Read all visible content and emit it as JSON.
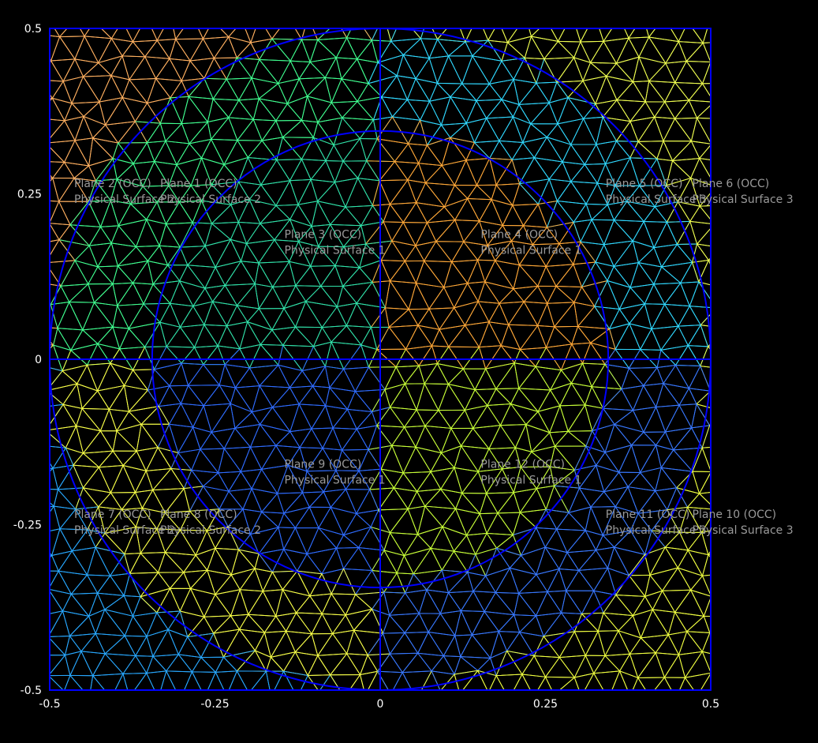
{
  "plot": {
    "x_range": [
      -0.5,
      0.5
    ],
    "y_range": [
      -0.5,
      0.5
    ],
    "x_ticks": [
      {
        "value": -0.5,
        "label": "-0.5"
      },
      {
        "value": -0.25,
        "label": "-0.25"
      },
      {
        "value": 0,
        "label": "0"
      },
      {
        "value": 0.25,
        "label": "0.25"
      },
      {
        "value": 0.5,
        "label": "0.5"
      }
    ],
    "y_ticks": [
      {
        "value": 0.5,
        "label": "0.5"
      },
      {
        "value": 0.25,
        "label": "0.25"
      },
      {
        "value": 0,
        "label": "0"
      },
      {
        "value": -0.25,
        "label": "-0.25"
      },
      {
        "value": -0.5,
        "label": "-0.5"
      }
    ],
    "geometry": {
      "outer_circle_radius": 0.5,
      "inner_circle_radius": 0.345,
      "divider_lines": [
        "x=0",
        "y=0"
      ],
      "boundary_color": "#0000ff"
    }
  },
  "regions": [
    {
      "id": "plane-2",
      "quadrant": "upper-left",
      "zone": "corner",
      "mesh_color": "#ffb060",
      "plane": "Plane 2 (OCC)",
      "surface": "Physical Surface 2",
      "label_at": [
        -0.463,
        0.26
      ]
    },
    {
      "id": "plane-1",
      "quadrant": "upper-left",
      "zone": "ring",
      "mesh_color": "#40ff90",
      "plane": "Plane 1 (OCC)",
      "surface": "Physical Surface 2",
      "label_at": [
        -0.333,
        0.26
      ]
    },
    {
      "id": "plane-3",
      "quadrant": "upper-left",
      "zone": "disk",
      "mesh_color": "#30e0a8",
      "plane": "Plane 3 (OCC)",
      "surface": "Physical Surface 1",
      "label_at": [
        -0.145,
        0.183
      ]
    },
    {
      "id": "plane-4",
      "quadrant": "upper-right",
      "zone": "disk",
      "mesh_color": "#ffa838",
      "plane": "Plane 4 (OCC)",
      "surface": "Physical Surface 1",
      "label_at": [
        0.152,
        0.183
      ]
    },
    {
      "id": "plane-5",
      "quadrant": "upper-right",
      "zone": "ring",
      "mesh_color": "#30d8ff",
      "plane": "Plane 5 (OCC)",
      "surface": "Physical Surface 3",
      "label_at": [
        0.341,
        0.26
      ]
    },
    {
      "id": "plane-6",
      "quadrant": "upper-right",
      "zone": "corner",
      "mesh_color": "#f0ff50",
      "plane": "Plane 6 (OCC)",
      "surface": "Physical Surface 3",
      "label_at": [
        0.472,
        0.26
      ]
    },
    {
      "id": "plane-7",
      "quadrant": "lower-left",
      "zone": "corner",
      "mesh_color": "#28a8ff",
      "plane": "Plane 7 (OCC)",
      "surface": "Physical Surface 2",
      "label_at": [
        -0.463,
        -0.24
      ]
    },
    {
      "id": "plane-8",
      "quadrant": "lower-left",
      "zone": "ring",
      "mesh_color": "#f8ff48",
      "plane": "Plane 8 (OCC)",
      "surface": "Physical Surface 2",
      "label_at": [
        -0.333,
        -0.24
      ]
    },
    {
      "id": "plane-9",
      "quadrant": "lower-left",
      "zone": "disk",
      "mesh_color": "#2f6cff",
      "plane": "Plane 9 (OCC)",
      "surface": "Physical Surface 1",
      "label_at": [
        -0.145,
        -0.164
      ]
    },
    {
      "id": "plane-12",
      "quadrant": "lower-right",
      "zone": "disk",
      "mesh_color": "#c8ff38",
      "plane": "Plane 12 (OCC)",
      "surface": "Physical Surface 1",
      "label_at": [
        0.152,
        -0.164
      ]
    },
    {
      "id": "plane-11",
      "quadrant": "lower-right",
      "zone": "ring",
      "mesh_color": "#3878ff",
      "plane": "Plane 11 (OCC)",
      "surface": "Physical Surface 3",
      "label_at": [
        0.341,
        -0.24
      ]
    },
    {
      "id": "plane-10",
      "quadrant": "lower-right",
      "zone": "corner",
      "mesh_color": "#f0ff40",
      "plane": "Plane 10 (OCC)",
      "surface": "Physical Surface 3",
      "label_at": [
        0.472,
        -0.24
      ]
    }
  ]
}
